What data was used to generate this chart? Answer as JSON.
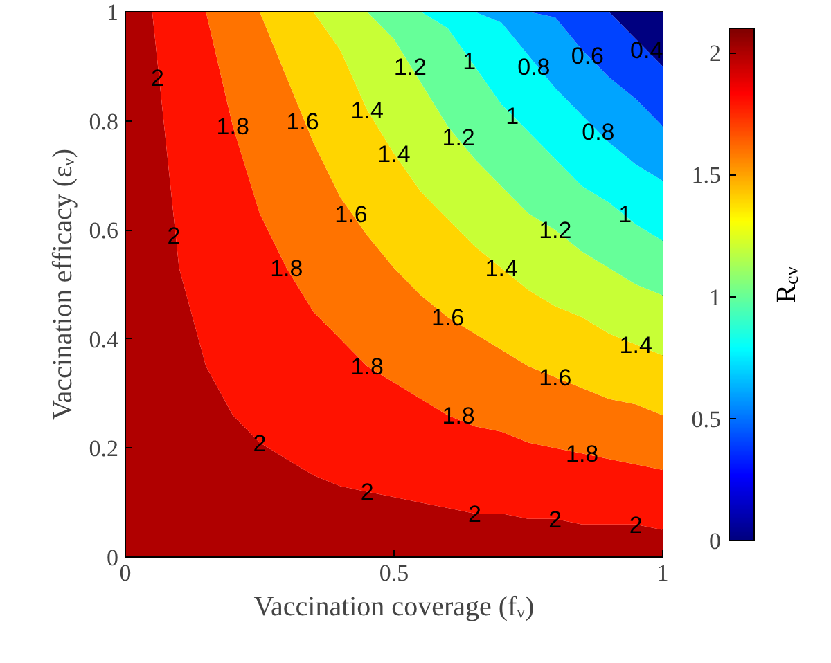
{
  "chart_data": {
    "type": "area",
    "xlabel": "Vaccination coverage (fᵥ)",
    "ylabel": "Vaccination efficacy (εᵥ)",
    "clabel": "R$_{cv}$",
    "xlim": [
      0,
      1
    ],
    "ylim": [
      0,
      1
    ],
    "xticks": [
      0,
      0.5,
      1
    ],
    "yticks": [
      0,
      0.2,
      0.4,
      0.6,
      0.8,
      1
    ],
    "clim": [
      0,
      2.1
    ],
    "cticks": [
      0,
      0.5,
      1,
      1.5,
      2
    ],
    "stacked": true,
    "x": [
      0,
      0.05,
      0.1,
      0.15,
      0.2,
      0.25,
      0.3,
      0.35,
      0.4,
      0.45,
      0.5,
      0.55,
      0.6,
      0.65,
      0.7,
      0.75,
      0.8,
      0.85,
      0.9,
      0.95,
      1
    ],
    "series": [
      {
        "color": "#b00000",
        "values": [
          1,
          1,
          0.53,
          0.35,
          0.26,
          0.21,
          0.18,
          0.15,
          0.13,
          0.12,
          0.11,
          0.1,
          0.09,
          0.08,
          0.08,
          0.07,
          0.07,
          0.06,
          0.06,
          0.06,
          0.05
        ]
      },
      {
        "color": "#ff1200",
        "values": [
          0,
          0,
          0.47,
          0.65,
          0.53,
          0.42,
          0.35,
          0.3,
          0.27,
          0.23,
          0.21,
          0.19,
          0.17,
          0.16,
          0.15,
          0.14,
          0.13,
          0.13,
          0.12,
          0.11,
          0.11
        ]
      },
      {
        "color": "#ff7300",
        "values": [
          0,
          0,
          0,
          0,
          0.21,
          0.37,
          0.35,
          0.31,
          0.26,
          0.24,
          0.21,
          0.19,
          0.18,
          0.17,
          0.15,
          0.14,
          0.13,
          0.12,
          0.11,
          0.11,
          0.1
        ]
      },
      {
        "color": "#ffd500",
        "values": [
          0,
          0,
          0,
          0,
          0,
          0,
          0.12,
          0.24,
          0.27,
          0.23,
          0.21,
          0.19,
          0.18,
          0.16,
          0.15,
          0.14,
          0.13,
          0.13,
          0.12,
          0.11,
          0.11
        ]
      },
      {
        "color": "#c8ff36",
        "values": [
          0,
          0,
          0,
          0,
          0,
          0,
          0,
          0,
          0.07,
          0.18,
          0.21,
          0.2,
          0.17,
          0.16,
          0.15,
          0.14,
          0.14,
          0.12,
          0.12,
          0.11,
          0.11
        ]
      },
      {
        "color": "#66ff99",
        "values": [
          0,
          0,
          0,
          0,
          0,
          0,
          0,
          0,
          0,
          0,
          0.05,
          0.13,
          0.18,
          0.17,
          0.15,
          0.15,
          0.13,
          0.12,
          0.12,
          0.11,
          0.1
        ]
      },
      {
        "color": "#00fff9",
        "values": [
          0,
          0,
          0,
          0,
          0,
          0,
          0,
          0,
          0,
          0,
          0,
          0,
          0.03,
          0.1,
          0.15,
          0.14,
          0.13,
          0.13,
          0.11,
          0.11,
          0.11
        ]
      },
      {
        "color": "#00a4ff",
        "values": [
          0,
          0,
          0,
          0,
          0,
          0,
          0,
          0,
          0,
          0,
          0,
          0,
          0,
          0,
          0.02,
          0.08,
          0.13,
          0.12,
          0.12,
          0.12,
          0.1
        ]
      },
      {
        "color": "#0043ff",
        "values": [
          0,
          0,
          0,
          0,
          0,
          0,
          0,
          0,
          0,
          0,
          0,
          0,
          0,
          0,
          0,
          0,
          0.01,
          0.07,
          0.12,
          0.11,
          0.11
        ]
      },
      {
        "color": "#000080",
        "values": [
          0,
          0,
          0,
          0,
          0,
          0,
          0,
          0,
          0,
          0,
          0,
          0,
          0,
          0,
          0,
          0,
          0,
          0,
          0,
          0.05,
          0.1
        ]
      }
    ],
    "annotations": [
      {
        "text": "2",
        "x": 0.06,
        "y": 0.88
      },
      {
        "text": "2",
        "x": 0.09,
        "y": 0.59
      },
      {
        "text": "2",
        "x": 0.25,
        "y": 0.21
      },
      {
        "text": "2",
        "x": 0.45,
        "y": 0.12
      },
      {
        "text": "2",
        "x": 0.65,
        "y": 0.08
      },
      {
        "text": "2",
        "x": 0.8,
        "y": 0.07
      },
      {
        "text": "2",
        "x": 0.95,
        "y": 0.06
      },
      {
        "text": "1.8",
        "x": 0.2,
        "y": 0.79
      },
      {
        "text": "1.8",
        "x": 0.3,
        "y": 0.53
      },
      {
        "text": "1.8",
        "x": 0.45,
        "y": 0.35
      },
      {
        "text": "1.8",
        "x": 0.62,
        "y": 0.26
      },
      {
        "text": "1.8",
        "x": 0.85,
        "y": 0.19
      },
      {
        "text": "1.6",
        "x": 0.33,
        "y": 0.8
      },
      {
        "text": "1.6",
        "x": 0.42,
        "y": 0.63
      },
      {
        "text": "1.6",
        "x": 0.6,
        "y": 0.44
      },
      {
        "text": "1.6",
        "x": 0.8,
        "y": 0.33
      },
      {
        "text": "1.4",
        "x": 0.45,
        "y": 0.82
      },
      {
        "text": "1.4",
        "x": 0.5,
        "y": 0.74
      },
      {
        "text": "1.4",
        "x": 0.7,
        "y": 0.53
      },
      {
        "text": "1.4",
        "x": 0.95,
        "y": 0.39
      },
      {
        "text": "1.2",
        "x": 0.53,
        "y": 0.9
      },
      {
        "text": "1.2",
        "x": 0.62,
        "y": 0.77
      },
      {
        "text": "1.2",
        "x": 0.8,
        "y": 0.6
      },
      {
        "text": "1",
        "x": 0.64,
        "y": 0.91
      },
      {
        "text": "1",
        "x": 0.72,
        "y": 0.81
      },
      {
        "text": "1",
        "x": 0.93,
        "y": 0.63
      },
      {
        "text": "0.8",
        "x": 0.76,
        "y": 0.9
      },
      {
        "text": "0.8",
        "x": 0.88,
        "y": 0.78
      },
      {
        "text": "0.6",
        "x": 0.86,
        "y": 0.92
      },
      {
        "text": "0.4",
        "x": 0.97,
        "y": 0.93
      }
    ]
  }
}
